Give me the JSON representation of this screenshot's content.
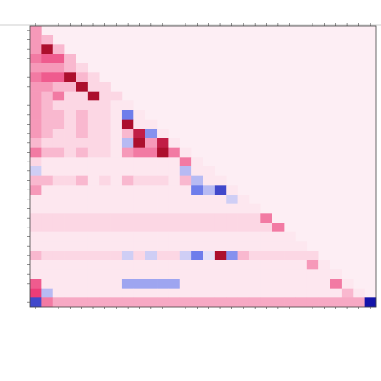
{
  "chart_data": {
    "type": "heatmap",
    "vlim": [
      -1,
      1
    ],
    "values": [
      [
        0.3
      ],
      [
        0.3,
        0.2
      ],
      [
        0.3,
        0.9,
        0.2
      ],
      [
        0.4,
        0.5,
        0.5,
        0.2
      ],
      [
        0.3,
        0.3,
        0.3,
        0.2,
        0.1
      ],
      [
        0.4,
        0.5,
        0.5,
        0.9,
        0.2,
        0.1
      ],
      [
        0.3,
        0.3,
        0.2,
        0.2,
        0.9,
        0.1,
        0.1
      ],
      [
        0.3,
        0.2,
        0.4,
        0.1,
        0.1,
        0.9,
        0.1,
        0.1
      ],
      [
        0.3,
        0.2,
        0.1,
        0.1,
        0.1,
        0.1,
        0.1,
        0.05,
        0.05
      ],
      [
        0.3,
        0.2,
        0.2,
        0.1,
        0.2,
        0.1,
        0.1,
        0.05,
        -0.6,
        0.05
      ],
      [
        0.3,
        0.2,
        0.2,
        0.1,
        0.2,
        0.1,
        0.1,
        0.05,
        0.9,
        0.05,
        0.05
      ],
      [
        0.3,
        0.2,
        0.1,
        0.1,
        0.2,
        0.1,
        0.1,
        0.05,
        0.2,
        0.8,
        -0.5,
        0.05
      ],
      [
        0.2,
        0.1,
        0.1,
        0.1,
        0.1,
        0.1,
        0.1,
        0.05,
        -0.3,
        0.9,
        0.3,
        0.8,
        0.05
      ],
      [
        0.4,
        0.2,
        0.2,
        0.1,
        0.2,
        0.1,
        0.1,
        0.05,
        0.3,
        0.4,
        0.4,
        0.9,
        0.4,
        0.05
      ],
      [
        0.1,
        0.05,
        0.05,
        0.05,
        0.05,
        0.05,
        0.05,
        0.05,
        0.05,
        0.05,
        0.05,
        0.05,
        0.05,
        0.4,
        0.05
      ],
      [
        -0.2,
        0.05,
        0.05,
        0.05,
        0.05,
        0.05,
        0.05,
        0.05,
        0.05,
        0.05,
        0.05,
        0.05,
        0.05,
        -0.3,
        0.05,
        0.05
      ],
      [
        0.2,
        0.2,
        0.1,
        0.1,
        0.2,
        0.05,
        0.1,
        0.05,
        0.2,
        0.1,
        0.1,
        0.1,
        0.05,
        0.2,
        -0.3,
        0.05,
        0.05
      ],
      [
        0.3,
        0.05,
        0.05,
        0.05,
        0.05,
        0.05,
        0.05,
        0.05,
        0.05,
        0.05,
        0.05,
        0.05,
        0.05,
        0.05,
        -0.6,
        -0.3,
        -0.8,
        0.05
      ],
      [
        0.05,
        0.05,
        0.05,
        0.05,
        0.05,
        0.05,
        0.05,
        0.05,
        0.05,
        0.05,
        0.05,
        0.05,
        0.05,
        0.05,
        0.05,
        0.05,
        0.05,
        -0.2,
        0.05
      ],
      [
        0.05,
        0.05,
        0.05,
        0.05,
        0.05,
        0.05,
        0.05,
        0.05,
        0.05,
        0.05,
        0.05,
        0.05,
        0.05,
        0.05,
        0.05,
        0.05,
        0.05,
        0.05,
        0.05,
        0.05
      ],
      [
        0.1,
        0.1,
        0.1,
        0.1,
        0.1,
        0.1,
        0.1,
        0.1,
        0.1,
        0.1,
        0.1,
        0.1,
        0.1,
        0.1,
        0.1,
        0.1,
        0.1,
        0.1,
        0.1,
        0.1,
        0.4
      ],
      [
        0.1,
        0.1,
        0.1,
        0.1,
        0.1,
        0.1,
        0.1,
        0.1,
        0.1,
        0.1,
        0.1,
        0.1,
        0.1,
        0.1,
        0.1,
        0.1,
        0.1,
        0.1,
        0.1,
        0.1,
        0.1,
        0.4
      ],
      [
        0.05,
        0.05,
        0.05,
        0.05,
        0.05,
        0.05,
        0.05,
        0.05,
        0.05,
        0.05,
        0.05,
        0.05,
        0.05,
        0.05,
        0.05,
        0.05,
        0.05,
        0.05,
        0.05,
        0.05,
        0.05,
        0.05,
        0.05
      ],
      [
        0.05,
        0.05,
        0.05,
        0.05,
        0.05,
        0.05,
        0.05,
        0.05,
        0.05,
        0.05,
        0.05,
        0.05,
        0.05,
        0.05,
        0.05,
        0.05,
        0.05,
        0.05,
        0.05,
        0.05,
        0.05,
        0.05,
        0.05,
        0.05
      ],
      [
        0.2,
        0.1,
        0.1,
        0.1,
        0.1,
        0.1,
        0.1,
        0.1,
        -0.2,
        0.1,
        -0.2,
        0.1,
        0.1,
        -0.2,
        -0.6,
        -0.1,
        0.9,
        -0.5,
        0.2,
        0.1,
        0.1,
        0.1,
        0.1,
        0.1,
        0.1
      ],
      [
        0.05,
        0.05,
        0.05,
        0.05,
        0.05,
        0.05,
        0.05,
        0.05,
        0.05,
        0.05,
        0.05,
        0.05,
        0.05,
        0.05,
        0.05,
        0.05,
        0.05,
        0.05,
        0.05,
        0.05,
        0.05,
        0.05,
        0.05,
        0.05,
        0.3,
        0.05
      ],
      [
        0.05,
        0.05,
        0.05,
        0.05,
        0.05,
        0.05,
        0.05,
        0.05,
        0.05,
        0.05,
        0.05,
        0.05,
        0.05,
        0.05,
        0.05,
        0.05,
        0.05,
        0.05,
        0.05,
        0.05,
        0.05,
        0.05,
        0.05,
        0.05,
        0.05,
        0.05,
        0.05
      ],
      [
        0.5,
        0.05,
        0.05,
        0.05,
        0.05,
        0.05,
        0.05,
        0.05,
        -0.4,
        -0.4,
        -0.4,
        -0.4,
        -0.4,
        0.05,
        0.05,
        0.05,
        0.05,
        0.05,
        0.05,
        0.05,
        0.05,
        0.05,
        0.05,
        0.05,
        0.05,
        0.05,
        0.4,
        0.05
      ],
      [
        0.6,
        -0.3,
        0.05,
        0.05,
        0.05,
        0.05,
        0.05,
        0.05,
        0.05,
        0.05,
        0.05,
        0.05,
        0.05,
        0.05,
        0.05,
        0.05,
        0.05,
        0.05,
        0.05,
        0.05,
        0.05,
        0.05,
        0.05,
        0.05,
        0.05,
        0.05,
        0.05,
        0.2,
        0.05
      ],
      [
        -0.8,
        0.4,
        0.25,
        0.25,
        0.25,
        0.25,
        0.25,
        0.25,
        0.25,
        0.25,
        0.25,
        0.25,
        0.25,
        0.25,
        0.25,
        0.25,
        0.25,
        0.25,
        0.25,
        0.25,
        0.25,
        0.25,
        0.25,
        0.25,
        0.25,
        0.25,
        0.25,
        0.25,
        0.25,
        -1
      ]
    ]
  }
}
